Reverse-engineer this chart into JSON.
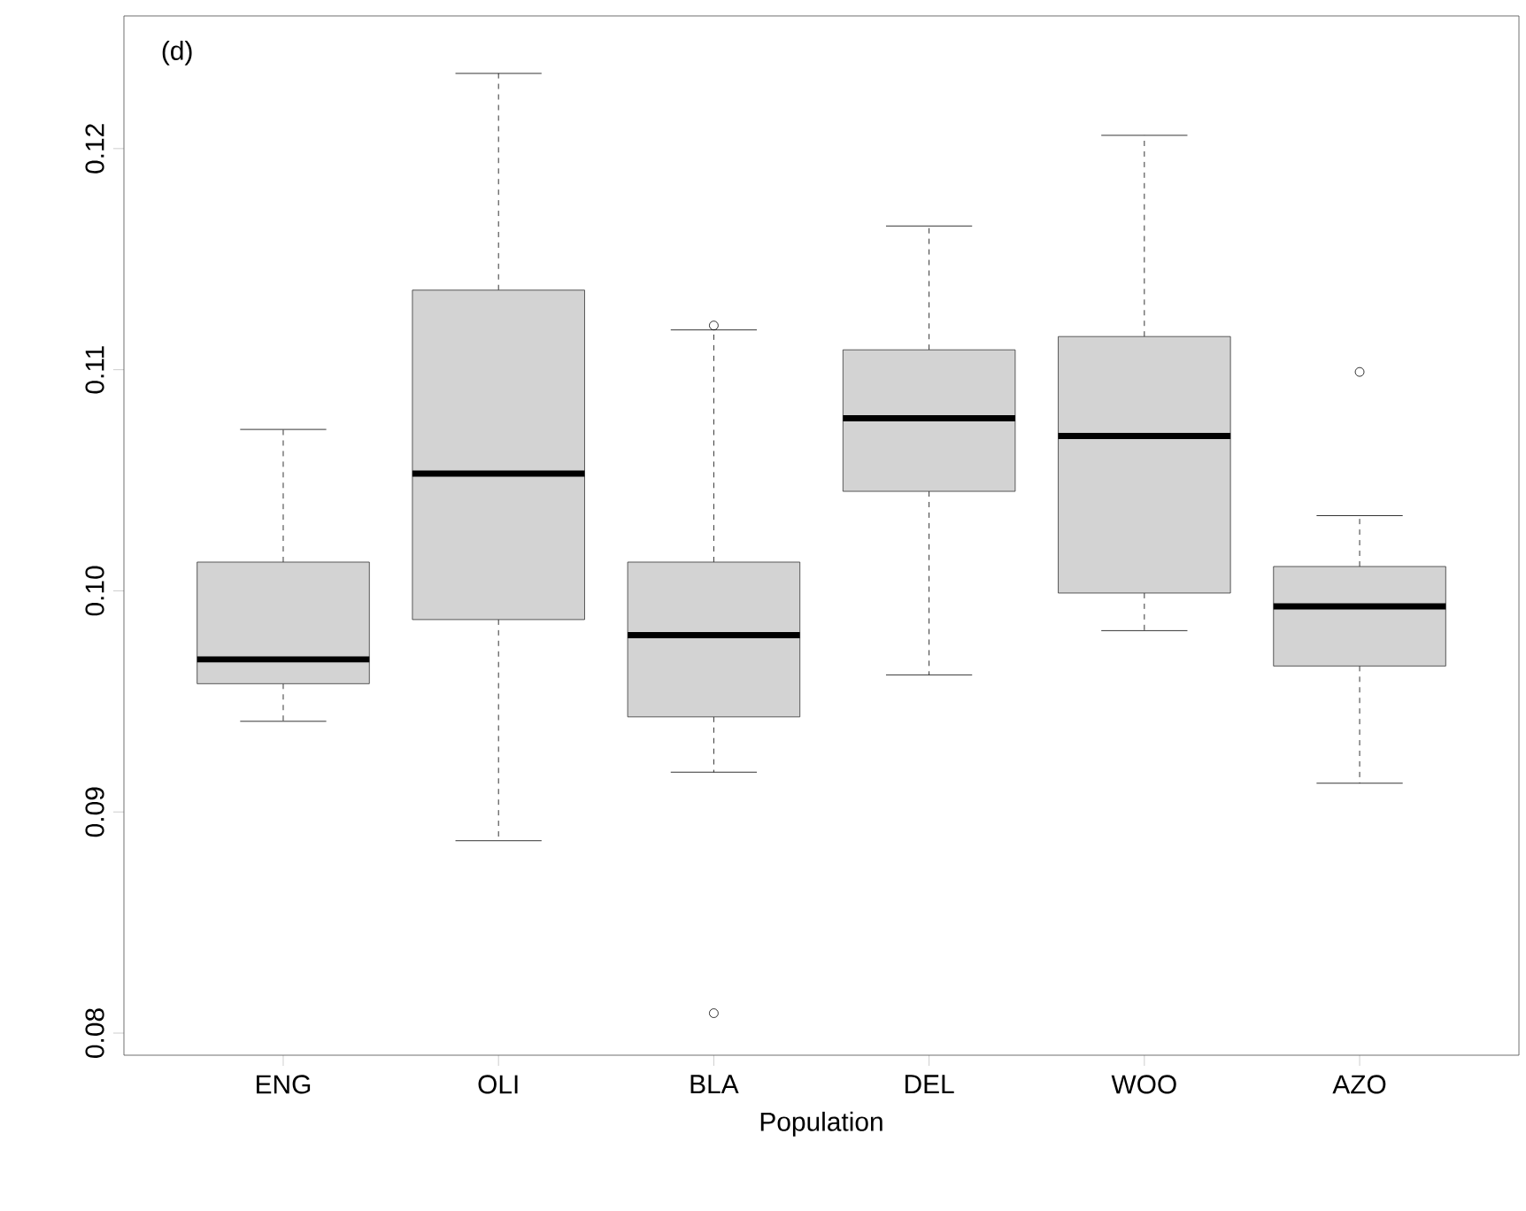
{
  "chart_data": {
    "type": "box",
    "xlabel": "Population",
    "annotations": [
      "(d)"
    ],
    "categories": [
      "ENG",
      "OLI",
      "BLA",
      "DEL",
      "WOO",
      "AZO"
    ],
    "ylim": [
      0.079,
      0.126
    ],
    "yticks": [
      0.08,
      0.09,
      {
        "value": 0.1,
        "label": "0.10"
      },
      0.11,
      0.12
    ],
    "series": [
      {
        "color": "#d3d3d3",
        "boxes": [
          {
            "low": 0.0941,
            "q1": 0.0958,
            "median": 0.0969,
            "q3": 0.1013,
            "high": 0.1073
          },
          {
            "low": 0.0887,
            "q1": 0.0987,
            "median": 0.1053,
            "q3": 0.1136,
            "high": 0.1234
          },
          {
            "low": 0.0918,
            "q1": 0.0943,
            "median": 0.098,
            "q3": 0.1013,
            "high": 0.1118,
            "outliers": [
              0.112,
              0.0809
            ]
          },
          {
            "low": 0.0962,
            "q1": 0.1045,
            "median": 0.1078,
            "q3": 0.1109,
            "high": 0.1165
          },
          {
            "low": 0.0982,
            "q1": 0.0999,
            "median": 0.107,
            "q3": 0.1115,
            "high": 0.1206
          },
          {
            "low": 0.0913,
            "q1": 0.0966,
            "median": 0.0993,
            "q3": 0.1011,
            "high": 0.1034,
            "outliers": [
              0.1099
            ]
          }
        ]
      }
    ]
  }
}
